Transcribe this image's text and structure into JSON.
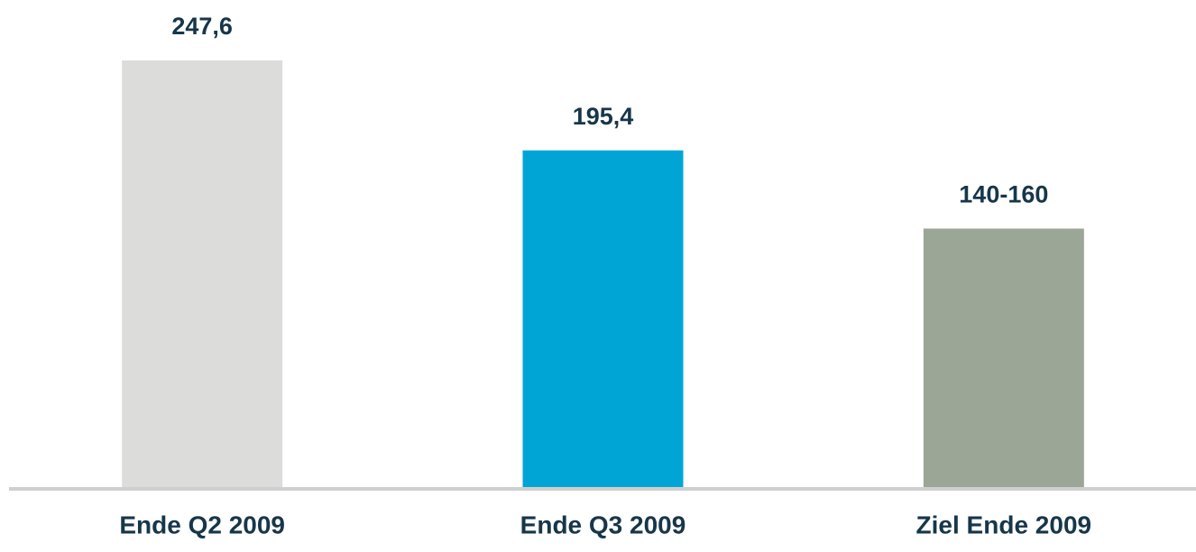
{
  "chart_data": {
    "type": "bar",
    "categories": [
      "Ende Q2 2009",
      "Ende Q3 2009",
      "Ziel Ende 2009"
    ],
    "values": [
      247.6,
      195.4,
      150
    ],
    "value_labels": [
      "247,6",
      "195,4",
      "140-160"
    ],
    "colors": [
      "#dcdcdb",
      "#00a5d6",
      "#9ca696"
    ]
  }
}
